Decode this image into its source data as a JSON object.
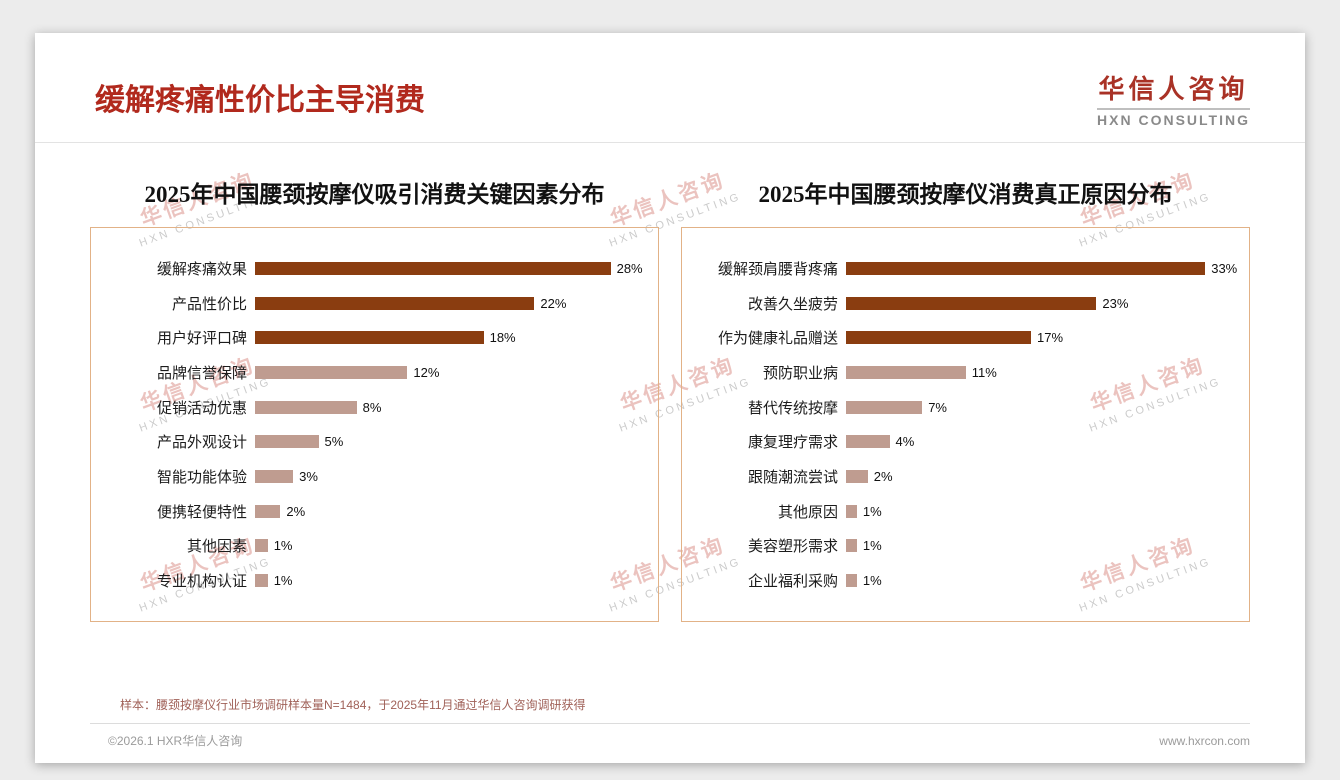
{
  "page": {
    "title": "缓解疼痛性价比主导消费",
    "logo": {
      "cn": "华信人咨询",
      "en": "HXN CONSULTING"
    },
    "watermark": {
      "cn": "华信人咨询",
      "en": "HXN CONSULTING"
    },
    "note": "样本：腰颈按摩仪行业市场调研样本量N=1484，于2025年11月通过华信人咨询调研获得",
    "footer_left": "©2026.1 HXR华信人咨询",
    "footer_right": "www.hxrcon.com"
  },
  "colors": {
    "title_red": "#b1291d",
    "bar_dark": "#8a3d10",
    "bar_light": "#bf9c90",
    "box_border": "#e2b287"
  },
  "chart_data": [
    {
      "type": "bar",
      "orientation": "horizontal",
      "title": "2025年中国腰颈按摩仪吸引消费关键因素分布",
      "categories": [
        "缓解疼痛效果",
        "产品性价比",
        "用户好评口碑",
        "品牌信誉保障",
        "促销活动优惠",
        "产品外观设计",
        "智能功能体验",
        "便携轻便特性",
        "其他因素",
        "专业机构认证"
      ],
      "values": [
        28,
        22,
        18,
        12,
        8,
        5,
        3,
        2,
        1,
        1
      ],
      "unit": "%",
      "highlight_count": 3,
      "xlim": [
        0,
        30
      ],
      "grid": false,
      "legend": false
    },
    {
      "type": "bar",
      "orientation": "horizontal",
      "title": "2025年中国腰颈按摩仪消费真正原因分布",
      "categories": [
        "缓解颈肩腰背疼痛",
        "改善久坐疲劳",
        "作为健康礼品赠送",
        "预防职业病",
        "替代传统按摩",
        "康复理疗需求",
        "跟随潮流尝试",
        "其他原因",
        "美容塑形需求",
        "企业福利采购"
      ],
      "values": [
        33,
        23,
        17,
        11,
        7,
        4,
        2,
        1,
        1,
        1
      ],
      "unit": "%",
      "highlight_count": 3,
      "xlim": [
        0,
        35
      ],
      "grid": false,
      "legend": false
    }
  ]
}
